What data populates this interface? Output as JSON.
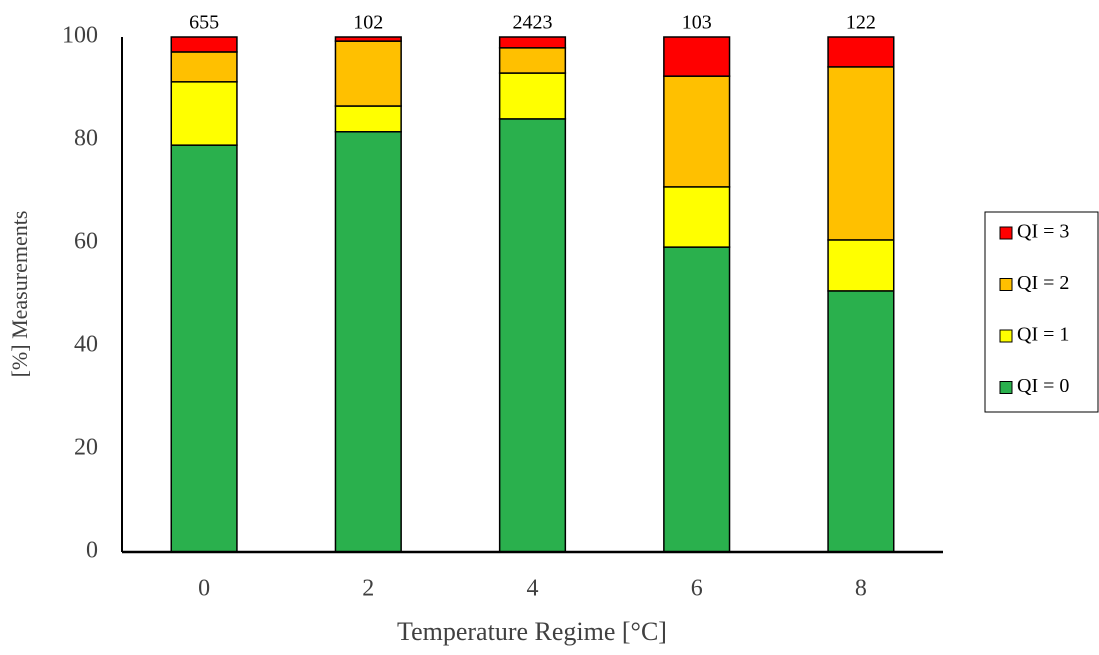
{
  "chart_data": {
    "type": "stacked_bar",
    "x_label": "Temperature Regime [°C]",
    "y_label": "[%] Measurements",
    "categories": [
      "0",
      "2",
      "4",
      "6",
      "8"
    ],
    "annotations": [
      655,
      102,
      2423,
      103,
      122
    ],
    "series": [
      {
        "name": "QI = 0",
        "color": "#2ab04d",
        "values": [
          79.0,
          81.6,
          84.1,
          59.2,
          50.7
        ]
      },
      {
        "name": "QI = 1",
        "color": "#ffff00",
        "values": [
          12.3,
          5.0,
          8.9,
          11.7,
          9.9
        ]
      },
      {
        "name": "QI = 2",
        "color": "#ffc000",
        "values": [
          5.8,
          12.6,
          4.9,
          21.5,
          33.6
        ]
      },
      {
        "name": "QI = 3",
        "color": "#ff0000",
        "values": [
          2.9,
          0.8,
          2.1,
          7.6,
          5.8
        ]
      }
    ],
    "ylim": [
      0,
      100
    ],
    "yticks": [
      0,
      20,
      40,
      60,
      80,
      100
    ],
    "grid": false,
    "legend": "right"
  }
}
